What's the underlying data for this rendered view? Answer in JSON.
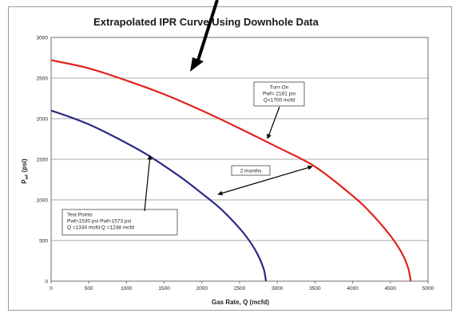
{
  "chart_data": {
    "type": "line",
    "title": "Extrapolated IPR Curve Using Downhole Data",
    "xlabel": "Gas Rate, Q (mcfd)",
    "ylabel": "P",
    "ylabel_sub": "wf",
    "ylabel_unit": "(psi)",
    "xlim": [
      0,
      5000
    ],
    "ylim": [
      0,
      3000
    ],
    "xticks": [
      "0",
      "500",
      "1000",
      "1500",
      "2000",
      "2500",
      "3000",
      "3500",
      "4000",
      "4500",
      "5000"
    ],
    "yticks": [
      "0",
      "500",
      "1000",
      "1500",
      "2000",
      "2500",
      "3000"
    ],
    "grid": true,
    "series": [
      {
        "color": "#e0231c",
        "x": [
          0,
          500,
          1000,
          1500,
          2000,
          2500,
          3000,
          3500,
          4000,
          4250,
          4500,
          4650,
          4730,
          4760,
          4770
        ],
        "y": [
          2720,
          2620,
          2470,
          2300,
          2100,
          1880,
          1650,
          1410,
          1050,
          830,
          560,
          350,
          180,
          60,
          0
        ]
      },
      {
        "color": "#2b2b86",
        "x": [
          0,
          250,
          500,
          750,
          1000,
          1250,
          1500,
          1750,
          2000,
          2250,
          2500,
          2650,
          2750,
          2820,
          2840,
          2850
        ],
        "y": [
          2100,
          2020,
          1930,
          1820,
          1700,
          1570,
          1420,
          1260,
          1080,
          890,
          650,
          470,
          310,
          150,
          60,
          0
        ]
      }
    ],
    "annotations": [
      {
        "lines": [
          "Turn On",
          "Pwf= 2181 psi",
          "Q=1700 mcfd"
        ]
      },
      {
        "lines": [
          "2 months"
        ]
      },
      {
        "lines": [
          "Test Points",
          "Pwf=1530 psi        Pwf=1573 psi",
          "Q =1334 mcfd       Q =1248 mcfd"
        ]
      }
    ]
  }
}
